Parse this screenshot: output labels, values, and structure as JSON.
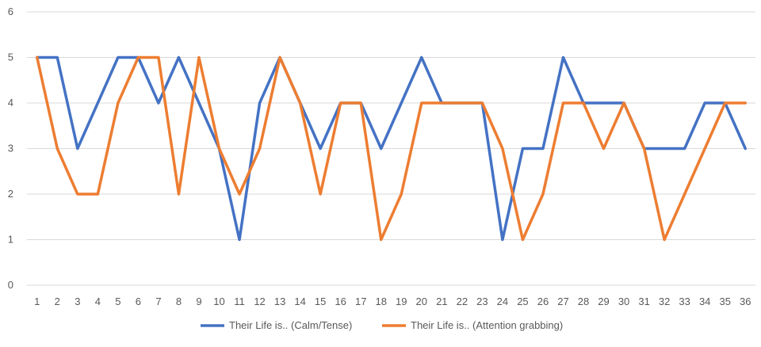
{
  "chart_data": {
    "type": "line",
    "title": "",
    "xlabel": "",
    "ylabel": "",
    "ylim": [
      0,
      6
    ],
    "yticks": [
      0,
      1,
      2,
      3,
      4,
      5,
      6
    ],
    "grid": true,
    "legend_position": "bottom",
    "categories": [
      "1",
      "2",
      "3",
      "4",
      "5",
      "6",
      "7",
      "8",
      "9",
      "10",
      "11",
      "12",
      "13",
      "14",
      "15",
      "16",
      "17",
      "18",
      "19",
      "20",
      "21",
      "22",
      "23",
      "24",
      "25",
      "26",
      "27",
      "28",
      "29",
      "30",
      "31",
      "32",
      "33",
      "34",
      "35",
      "36"
    ],
    "series": [
      {
        "name": "Their Life is.. (Calm/Tense)",
        "color": "#4472c4",
        "values": [
          5,
          5,
          3,
          4,
          5,
          5,
          4,
          5,
          4,
          3,
          1,
          4,
          5,
          4,
          3,
          4,
          4,
          3,
          4,
          5,
          4,
          4,
          4,
          1,
          3,
          3,
          5,
          4,
          4,
          4,
          3,
          3,
          3,
          4,
          4,
          3
        ]
      },
      {
        "name": "Their Life is.. (Attention grabbing)",
        "color": "#ed7d31",
        "values": [
          5,
          3,
          2,
          2,
          4,
          5,
          5,
          2,
          5,
          3,
          2,
          3,
          5,
          4,
          2,
          4,
          4,
          1,
          2,
          4,
          4,
          4,
          4,
          3,
          1,
          2,
          4,
          4,
          3,
          4,
          3,
          1,
          2,
          3,
          4,
          4
        ]
      }
    ]
  }
}
